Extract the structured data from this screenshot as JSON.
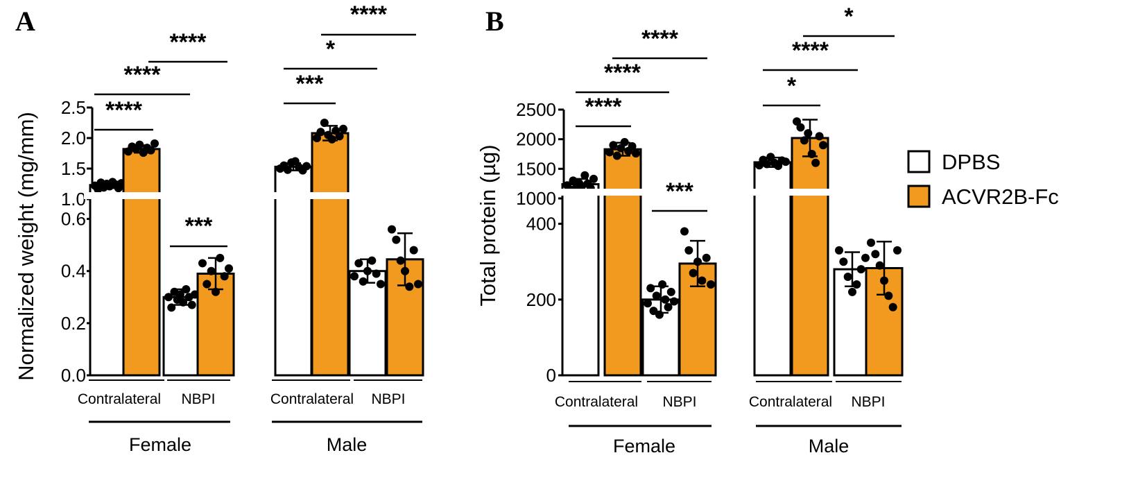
{
  "legend": [
    {
      "label": "DPBS",
      "color": "#ffffff"
    },
    {
      "label": "ACVR2B-Fc",
      "color": "#f29a1f"
    }
  ],
  "chart_data": [
    {
      "type": "bar",
      "panel": "A",
      "ylabel": "Normalized weight (mg/mm)",
      "y_axis_broken": true,
      "ylim_lower": [
        0,
        0.7
      ],
      "ylim_upper": [
        1.0,
        2.5
      ],
      "yticks_lower": [
        "0.0",
        "0.2",
        "0.4",
        "0.6"
      ],
      "yticks_upper": [
        "1.0",
        "1.5",
        "2.0",
        "2.5"
      ],
      "groups": [
        {
          "sex": "Female",
          "tissues": [
            {
              "tissue": "Contralateral",
              "series": [
                {
                  "name": "DPBS",
                  "mean": 1.23,
                  "sd": 0.05,
                  "points": [
                    1.22,
                    1.16,
                    1.27,
                    1.19,
                    1.25,
                    1.21,
                    1.28,
                    1.24,
                    1.18,
                    1.26
                  ]
                },
                {
                  "name": "ACVR2B-Fc",
                  "mean": 1.82,
                  "sd": 0.06,
                  "points": [
                    1.78,
                    1.86,
                    1.82,
                    1.89,
                    1.76,
                    1.84,
                    1.8,
                    1.91
                  ]
                }
              ]
            },
            {
              "tissue": "NBPI",
              "series": [
                {
                  "name": "DPBS",
                  "mean": 0.3,
                  "sd": 0.03,
                  "points": [
                    0.3,
                    0.26,
                    0.32,
                    0.29,
                    0.31,
                    0.28,
                    0.33,
                    0.3,
                    0.27,
                    0.31
                  ]
                },
                {
                  "name": "ACVR2B-Fc",
                  "mean": 0.39,
                  "sd": 0.06,
                  "points": [
                    0.43,
                    0.35,
                    0.4,
                    0.32,
                    0.45,
                    0.38,
                    0.41
                  ]
                }
              ]
            }
          ]
        },
        {
          "sex": "Male",
          "tissues": [
            {
              "tissue": "Contralateral",
              "series": [
                {
                  "name": "DPBS",
                  "mean": 1.53,
                  "sd": 0.06,
                  "points": [
                    1.5,
                    1.55,
                    1.48,
                    1.6,
                    1.62,
                    1.52,
                    1.47,
                    1.54
                  ]
                },
                {
                  "name": "ACVR2B-Fc",
                  "mean": 2.08,
                  "sd": 0.12,
                  "points": [
                    2.0,
                    2.1,
                    2.25,
                    2.05,
                    1.98,
                    2.12,
                    2.03,
                    2.15
                  ]
                }
              ]
            },
            {
              "tissue": "NBPI",
              "series": [
                {
                  "name": "DPBS",
                  "mean": 0.4,
                  "sd": 0.045,
                  "points": [
                    0.38,
                    0.43,
                    0.36,
                    0.4,
                    0.44,
                    0.39,
                    0.35
                  ]
                },
                {
                  "name": "ACVR2B-Fc",
                  "mean": 0.445,
                  "sd": 0.1,
                  "points": [
                    0.56,
                    0.52,
                    0.44,
                    0.4,
                    0.34,
                    0.48,
                    0.35
                  ]
                }
              ]
            }
          ]
        }
      ],
      "significance": [
        {
          "label": "****",
          "between": [
            "Female Contralateral DPBS",
            "Female Contralateral ACVR2B-Fc"
          ]
        },
        {
          "label": "****",
          "between": [
            "Female Contralateral DPBS",
            "Female NBPI DPBS"
          ]
        },
        {
          "label": "****",
          "between": [
            "Female Contralateral ACVR2B-Fc",
            "Female NBPI ACVR2B-Fc"
          ]
        },
        {
          "label": "***",
          "between": [
            "Female NBPI DPBS",
            "Female NBPI ACVR2B-Fc"
          ]
        },
        {
          "label": "***",
          "between": [
            "Male Contralateral DPBS",
            "Male Contralateral ACVR2B-Fc"
          ]
        },
        {
          "label": "*",
          "between": [
            "Male Contralateral DPBS",
            "Male NBPI DPBS"
          ]
        },
        {
          "label": "****",
          "between": [
            "Male Contralateral ACVR2B-Fc",
            "Male NBPI ACVR2B-Fc"
          ]
        }
      ]
    },
    {
      "type": "bar",
      "panel": "B",
      "ylabel": "Total protein (µg)",
      "y_axis_broken": true,
      "ylim_lower": [
        0,
        500
      ],
      "ylim_upper": [
        1000,
        2500
      ],
      "yticks_lower": [
        "0",
        "200",
        "400"
      ],
      "yticks_upper": [
        "1000",
        "1500",
        "2000",
        "2500"
      ],
      "groups": [
        {
          "sex": "Female",
          "tissues": [
            {
              "tissue": "Contralateral",
              "series": [
                {
                  "name": "DPBS",
                  "mean": 1240,
                  "sd": 90,
                  "points": [
                    1220,
                    1150,
                    1300,
                    1180,
                    1260,
                    1210,
                    1390,
                    1250,
                    1170,
                    1330
                  ]
                },
                {
                  "name": "ACVR2B-Fc",
                  "mean": 1830,
                  "sd": 110,
                  "points": [
                    1780,
                    1900,
                    1720,
                    1850,
                    1950,
                    1800,
                    1880,
                    1760
                  ]
                }
              ]
            },
            {
              "tissue": "NBPI",
              "series": [
                {
                  "name": "DPBS",
                  "mean": 200,
                  "sd": 35,
                  "points": [
                    190,
                    230,
                    170,
                    210,
                    160,
                    240,
                    200,
                    180,
                    220,
                    195
                  ]
                },
                {
                  "name": "ACVR2B-Fc",
                  "mean": 295,
                  "sd": 60,
                  "points": [
                    380,
                    330,
                    270,
                    300,
                    250,
                    310,
                    240
                  ]
                }
              ]
            }
          ]
        },
        {
          "sex": "Male",
          "tissues": [
            {
              "tissue": "Contralateral",
              "series": [
                {
                  "name": "DPBS",
                  "mean": 1610,
                  "sd": 80,
                  "points": [
                    1560,
                    1650,
                    1580,
                    1700,
                    1600,
                    1550,
                    1640,
                    1620
                  ]
                },
                {
                  "name": "ACVR2B-Fc",
                  "mean": 2020,
                  "sd": 310,
                  "points": [
                    2300,
                    2200,
                    1980,
                    2100,
                    1750,
                    1600,
                    2050,
                    1900
                  ]
                }
              ]
            },
            {
              "tissue": "NBPI",
              "series": [
                {
                  "name": "DPBS",
                  "mean": 280,
                  "sd": 45,
                  "points": [
                    330,
                    300,
                    260,
                    220,
                    240,
                    280,
                    310
                  ]
                },
                {
                  "name": "ACVR2B-Fc",
                  "mean": 283,
                  "sd": 70,
                  "points": [
                    350,
                    320,
                    290,
                    250,
                    210,
                    180,
                    330
                  ]
                }
              ]
            }
          ]
        }
      ],
      "significance": [
        {
          "label": "****",
          "between": [
            "Female Contralateral DPBS",
            "Female Contralateral ACVR2B-Fc"
          ]
        },
        {
          "label": "****",
          "between": [
            "Female Contralateral DPBS",
            "Female NBPI DPBS"
          ]
        },
        {
          "label": "****",
          "between": [
            "Female Contralateral ACVR2B-Fc",
            "Female NBPI ACVR2B-Fc"
          ]
        },
        {
          "label": "***",
          "between": [
            "Female NBPI DPBS",
            "Female NBPI ACVR2B-Fc"
          ]
        },
        {
          "label": "*",
          "between": [
            "Male Contralateral DPBS",
            "Male Contralateral ACVR2B-Fc"
          ]
        },
        {
          "label": "****",
          "between": [
            "Male Contralateral DPBS",
            "Male NBPI DPBS"
          ]
        },
        {
          "label": "*",
          "between": [
            "Male Contralateral ACVR2B-Fc",
            "Male NBPI ACVR2B-Fc"
          ]
        }
      ]
    }
  ]
}
